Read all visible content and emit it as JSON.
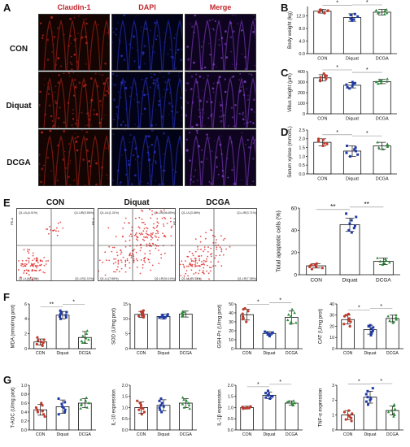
{
  "panel_letters": [
    "A",
    "B",
    "C",
    "D",
    "E",
    "F",
    "G"
  ],
  "panel_a": {
    "headers": [
      "Claudin-1",
      "DAPI",
      "Merge"
    ],
    "rows": [
      "CON",
      "Diquat",
      "DCGA"
    ]
  },
  "panel_e": {
    "titles": [
      "CON",
      "Diquat",
      "DCGA"
    ],
    "axis_tag": "PE-A",
    "quadrants": [
      {
        "ul": "Q1-UL(4.01%)",
        "ur": "Q1-UR(0.55%)",
        "ll": "Q1-LL(94.33%)",
        "lr": "Q1-LR(1.11%)"
      },
      {
        "ul": "Q1-UL(1.31%)",
        "ur": "Q1-UR(56.85%)",
        "ll": "Q1-LL(7.68%)",
        "lr": "Q1-LR(34.14%)"
      },
      {
        "ul": "Q1-UL(3.58%)",
        "ur": "Q1-UR(3.71%)",
        "ll": "Q1-LL(85.33%)",
        "lr": "Q1-LR(7.38%)"
      }
    ]
  },
  "colors": {
    "con": "#c0392b",
    "diquat": "#1f3aa8",
    "dcga": "#2e8b3a"
  },
  "chart_data": [
    {
      "id": "B",
      "type": "bar",
      "categories": [
        "CON",
        "Diquat",
        "DCGA"
      ],
      "values": [
        13.5,
        11.5,
        13.2
      ],
      "errors": [
        0.6,
        1.2,
        0.9
      ],
      "ylabel": "Body weight (kg)",
      "ylim": [
        0,
        15
      ],
      "yticks": [
        0,
        4,
        8,
        12
      ],
      "yticklabels": [
        "0.0",
        "4.0",
        "8.0",
        "12.0"
      ],
      "points": [
        [
          14.0,
          13.2,
          13.6,
          13.9,
          12.9,
          13.4,
          13.7
        ],
        [
          11.0,
          12.3,
          10.5,
          11.8,
          12.6,
          11.2,
          10.9
        ],
        [
          12.5,
          13.8,
          12.9,
          13.6,
          14.0,
          12.8,
          13.1
        ]
      ],
      "sig": [
        {
          "from": 0,
          "to": 1,
          "label": "*"
        },
        {
          "from": 1,
          "to": 2,
          "label": "*"
        }
      ]
    },
    {
      "id": "C",
      "type": "bar",
      "categories": [
        "CON",
        "Diquat",
        "DCGA"
      ],
      "values": [
        340,
        270,
        305
      ],
      "errors": [
        30,
        25,
        20
      ],
      "ylabel": "Villus height (μm)",
      "ylim": [
        0,
        400
      ],
      "yticks": [
        0,
        100,
        200,
        300,
        400
      ],
      "yticklabels": [
        "0",
        "100",
        "200",
        "300",
        "400"
      ],
      "points": [
        [
          320,
          360,
          380,
          330,
          345,
          310,
          355
        ],
        [
          250,
          290,
          260,
          300,
          240,
          280,
          275
        ],
        [
          290,
          320,
          300,
          310,
          285,
          330,
          305
        ]
      ],
      "sig": [
        {
          "from": 0,
          "to": 1,
          "label": "*"
        },
        {
          "from": 1,
          "to": 2,
          "label": "*"
        }
      ]
    },
    {
      "id": "D",
      "type": "bar",
      "categories": [
        "CON",
        "Diquat",
        "DCGA"
      ],
      "values": [
        1.8,
        1.3,
        1.6
      ],
      "errors": [
        0.2,
        0.3,
        0.2
      ],
      "ylabel": "Serum xylose (mmol/L)",
      "ylim": [
        0,
        2.5
      ],
      "yticks": [
        0,
        0.5,
        1,
        1.5,
        2,
        2.5
      ],
      "yticklabels": [
        "0.0",
        "0.5",
        "1.0",
        "1.5",
        "2.0",
        "2.5"
      ],
      "points": [
        [
          1.6,
          1.9,
          2.0,
          1.7,
          1.85,
          1.75,
          1.95
        ],
        [
          1.0,
          1.5,
          1.2,
          1.6,
          1.1,
          1.4,
          1.3
        ],
        [
          1.4,
          1.7,
          1.6,
          1.8,
          1.5,
          1.65,
          1.55
        ]
      ],
      "sig": [
        {
          "from": 0,
          "to": 1,
          "label": "*"
        },
        {
          "from": 1,
          "to": 2,
          "label": "*"
        }
      ]
    },
    {
      "id": "E",
      "type": "bar",
      "categories": [
        "CON",
        "Diquat",
        "DCGA"
      ],
      "values": [
        8,
        45,
        12
      ],
      "errors": [
        2,
        6,
        3
      ],
      "ylabel": "Total apoptotic cells (%)",
      "ylim": [
        0,
        60
      ],
      "yticks": [
        0,
        20,
        40,
        60
      ],
      "yticklabels": [
        "0",
        "20",
        "40",
        "60"
      ],
      "points": [
        [
          6,
          9,
          7,
          10,
          8,
          5,
          9,
          7
        ],
        [
          40,
          52,
          46,
          38,
          49,
          44,
          55,
          42
        ],
        [
          10,
          14,
          11,
          15,
          12,
          9,
          13,
          11
        ]
      ],
      "sig": [
        {
          "from": 0,
          "to": 1,
          "label": "**"
        },
        {
          "from": 1,
          "to": 2,
          "label": "**"
        }
      ]
    },
    {
      "id": "F1",
      "type": "bar",
      "categories": [
        "CON",
        "Diquat",
        "DCGA"
      ],
      "values": [
        0.9,
        4.5,
        1.5
      ],
      "errors": [
        0.4,
        0.5,
        0.8
      ],
      "ylabel": "MDA (nmol/mg prot)",
      "ylim": [
        0,
        6
      ],
      "yticks": [
        0,
        2,
        4,
        6
      ],
      "yticklabels": [
        "0",
        "2",
        "4",
        "6"
      ],
      "points": [
        [
          0.5,
          1.2,
          0.8,
          1.5,
          0.6,
          0.9,
          1.1,
          0.4
        ],
        [
          4.0,
          4.8,
          4.3,
          5.1,
          4.5,
          4.2,
          4.9,
          4.6
        ],
        [
          0.8,
          2.4,
          1.2,
          2.0,
          1.0,
          1.7,
          1.4,
          0.9
        ]
      ],
      "sig": [
        {
          "from": 0,
          "to": 1,
          "label": "**"
        },
        {
          "from": 1,
          "to": 2,
          "label": "*"
        }
      ]
    },
    {
      "id": "F2",
      "type": "bar",
      "categories": [
        "CON",
        "Diquat",
        "DCGA"
      ],
      "values": [
        11.5,
        10.8,
        11.6
      ],
      "errors": [
        1.0,
        0.8,
        1.0
      ],
      "ylabel": "SOD (U/mg prot)",
      "ylim": [
        0,
        15
      ],
      "yticks": [
        0,
        5,
        10,
        15
      ],
      "yticklabels": [
        "0",
        "5",
        "10",
        "15"
      ],
      "points": [
        [
          10.5,
          12.4,
          11.0,
          12.8,
          11.6,
          10.9,
          12.0,
          11.2
        ],
        [
          10.2,
          11.5,
          10.6,
          11.0,
          10.4,
          11.3,
          10.8,
          10.7
        ],
        [
          10.8,
          12.3,
          11.4,
          12.5,
          11.0,
          11.8,
          12.1,
          10.9
        ]
      ],
      "sig": []
    },
    {
      "id": "F3",
      "type": "bar",
      "categories": [
        "CON",
        "Diquat",
        "DCGA"
      ],
      "values": [
        38,
        17,
        35
      ],
      "errors": [
        6,
        2,
        7
      ],
      "ylabel": "GSH-Px (U/mg prot)",
      "ylim": [
        0,
        50
      ],
      "yticks": [
        0,
        10,
        20,
        30,
        40,
        50
      ],
      "yticklabels": [
        "0",
        "10",
        "20",
        "30",
        "40",
        "50"
      ],
      "points": [
        [
          30,
          45,
          36,
          42,
          34,
          39,
          44,
          33
        ],
        [
          15,
          18,
          16,
          19,
          14,
          17,
          18,
          16
        ],
        [
          28,
          44,
          32,
          40,
          30,
          38,
          36,
          29
        ]
      ],
      "sig": [
        {
          "from": 0,
          "to": 1,
          "label": "*"
        },
        {
          "from": 1,
          "to": 2,
          "label": "*"
        }
      ]
    },
    {
      "id": "F4",
      "type": "bar",
      "categories": [
        "CON",
        "Diquat",
        "DCGA"
      ],
      "values": [
        26,
        17,
        27
      ],
      "errors": [
        4,
        4,
        3
      ],
      "ylabel": "CAT (U/mg prot)",
      "ylim": [
        0,
        40
      ],
      "yticks": [
        0,
        10,
        20,
        30,
        40
      ],
      "yticklabels": [
        "0",
        "10",
        "20",
        "30",
        "40"
      ],
      "points": [
        [
          22,
          31,
          25,
          29,
          20,
          27,
          24,
          30
        ],
        [
          12,
          21,
          15,
          19,
          14,
          20,
          16,
          18
        ],
        [
          24,
          30,
          26,
          29,
          23,
          28,
          27,
          25
        ]
      ],
      "sig": [
        {
          "from": 0,
          "to": 1,
          "label": "*"
        },
        {
          "from": 1,
          "to": 2,
          "label": "*"
        }
      ]
    },
    {
      "id": "G1",
      "type": "bar",
      "categories": [
        "CON",
        "Diquat",
        "DCGA"
      ],
      "values": [
        0.45,
        0.52,
        0.6
      ],
      "errors": [
        0.12,
        0.15,
        0.1
      ],
      "ylabel": "T-AOC (U/mg prot)",
      "ylim": [
        0,
        1.0
      ],
      "yticks": [
        0,
        0.2,
        0.4,
        0.6,
        0.8,
        1.0
      ],
      "yticklabels": [
        "0.0",
        "0.2",
        "0.4",
        "0.6",
        "0.8",
        "1.0"
      ],
      "points": [
        [
          0.3,
          0.55,
          0.4,
          0.6,
          0.35,
          0.5,
          0.45,
          0.42
        ],
        [
          0.35,
          0.7,
          0.45,
          0.62,
          0.4,
          0.58,
          0.52,
          0.5
        ],
        [
          0.48,
          0.72,
          0.55,
          0.68,
          0.5,
          0.65,
          0.6,
          0.58
        ]
      ],
      "sig": []
    },
    {
      "id": "G2",
      "type": "bar",
      "categories": [
        "CON",
        "Diquat",
        "DCGA"
      ],
      "values": [
        1.0,
        1.1,
        1.2
      ],
      "errors": [
        0.25,
        0.25,
        0.2
      ],
      "ylabel": "IL-10 expression",
      "ylim": [
        0,
        2.0
      ],
      "yticks": [
        0,
        0.5,
        1.0,
        1.5,
        2.0
      ],
      "yticklabels": [
        "0.0",
        "0.5",
        "1.0",
        "1.5",
        "2.0"
      ],
      "points": [
        [
          0.7,
          1.3,
          0.9,
          1.2,
          0.8,
          1.1,
          1.0,
          0.95
        ],
        [
          0.8,
          1.4,
          1.0,
          1.3,
          0.9,
          1.2,
          1.1,
          1.05
        ],
        [
          0.95,
          1.45,
          1.1,
          1.35,
          1.0,
          1.3,
          1.2,
          1.15
        ]
      ],
      "sig": []
    },
    {
      "id": "G3",
      "type": "bar",
      "categories": [
        "CON",
        "Diquat",
        "DCGA"
      ],
      "values": [
        1.0,
        1.55,
        1.2
      ],
      "errors": [
        0.06,
        0.15,
        0.1
      ],
      "ylabel": "IL-1β expression",
      "ylim": [
        0,
        2.0
      ],
      "yticks": [
        0,
        0.5,
        1.0,
        1.5,
        2.0
      ],
      "yticklabels": [
        "0.0",
        "0.5",
        "1.0",
        "1.5",
        "2.0"
      ],
      "points": [
        [
          0.95,
          1.05,
          1.0,
          0.98,
          1.03,
          0.97,
          1.02,
          1.0
        ],
        [
          1.4,
          1.75,
          1.5,
          1.65,
          1.45,
          1.6,
          1.55,
          1.5
        ],
        [
          1.1,
          1.3,
          1.15,
          1.25,
          1.12,
          1.28,
          1.2,
          1.18
        ]
      ],
      "sig": [
        {
          "from": 0,
          "to": 1,
          "label": "*"
        },
        {
          "from": 1,
          "to": 2,
          "label": "*"
        }
      ]
    },
    {
      "id": "G4",
      "type": "bar",
      "categories": [
        "CON",
        "Diquat",
        "DCGA"
      ],
      "values": [
        1.0,
        2.2,
        1.3
      ],
      "errors": [
        0.3,
        0.4,
        0.3
      ],
      "ylabel": "TNF-α expression",
      "ylim": [
        0,
        3
      ],
      "yticks": [
        0,
        1,
        2,
        3
      ],
      "yticklabels": [
        "0",
        "1",
        "2",
        "3"
      ],
      "points": [
        [
          0.6,
          1.3,
          0.8,
          1.2,
          0.9,
          1.1,
          0.7,
          1.0
        ],
        [
          1.7,
          2.8,
          2.0,
          2.6,
          1.9,
          2.4,
          2.2,
          2.1
        ],
        [
          0.9,
          1.7,
          1.1,
          1.6,
          1.2,
          1.4,
          1.3,
          1.0
        ]
      ],
      "sig": [
        {
          "from": 0,
          "to": 1,
          "label": "*"
        },
        {
          "from": 1,
          "to": 2,
          "label": "*"
        }
      ]
    }
  ]
}
